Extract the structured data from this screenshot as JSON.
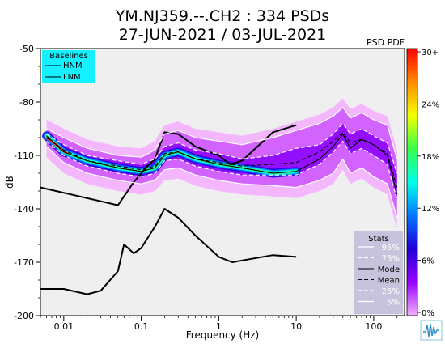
{
  "title_line1": "YM.NJ359.--.CH2 : 334 PSDs",
  "title_line2": "27-JUN-2021 / 03-JUL-2021",
  "corner_label": "PSD PDF",
  "colorbar": {
    "tick_labels": [
      "30+",
      "24%",
      "18%",
      "12%",
      "6%",
      "0%"
    ],
    "colors": [
      "#ff0000",
      "#ff8a00",
      "#f5ff00",
      "#38ff4a",
      "#00ffe8",
      "#0078ff",
      "#2000d8",
      "#9a00ff",
      "#f4b0ff"
    ]
  },
  "baselines_legend": {
    "title": "Baselines",
    "entries": [
      "HNM",
      "LNM"
    ],
    "background": "#14f0ff"
  },
  "stats_legend": {
    "title": "Stats",
    "entries": [
      "95%",
      "75%",
      "Mode",
      "Mean",
      "25%",
      "5%"
    ],
    "background": "#c8c3dc"
  },
  "chart_data": {
    "type": "line",
    "xlabel": "Frequency (Hz)",
    "ylabel": "dB",
    "x_scale": "log",
    "xlim": [
      0.005,
      250
    ],
    "ylim": [
      -200,
      -50
    ],
    "x_ticks": [
      0.01,
      0.1,
      1,
      10,
      100
    ],
    "x_tick_labels": [
      "0.01",
      "0.1",
      "1",
      "10",
      "100"
    ],
    "y_ticks": [
      -50,
      -80,
      -110,
      -140,
      -170,
      -200
    ],
    "y_tick_labels": [
      "-50",
      "-80",
      "-110",
      "-140",
      "-170",
      "-200"
    ],
    "series": [
      {
        "name": "HNM",
        "x": [
          0.005,
          0.05,
          0.08,
          0.12,
          0.15,
          0.2,
          0.3,
          0.5,
          1.0,
          1.4,
          2.0,
          5.0,
          10.0
        ],
        "y": [
          -128,
          -138,
          -125,
          -116,
          -112,
          -97,
          -98,
          -105,
          -110,
          -115,
          -113,
          -97,
          -93
        ]
      },
      {
        "name": "LNM",
        "x": [
          0.005,
          0.01,
          0.02,
          0.03,
          0.05,
          0.06,
          0.08,
          0.1,
          0.15,
          0.2,
          0.3,
          0.5,
          1.0,
          1.5,
          2.0,
          5.0,
          10.0
        ],
        "y": [
          -185,
          -185,
          -188,
          -186,
          -175,
          -160,
          -165,
          -162,
          -150,
          -140,
          -145,
          -155,
          -167,
          -170,
          -169,
          -166,
          -167
        ]
      },
      {
        "name": "95%",
        "x": [
          0.006,
          0.01,
          0.02,
          0.05,
          0.1,
          0.15,
          0.2,
          0.3,
          0.5,
          1,
          2,
          5,
          10,
          20,
          30,
          40,
          50,
          70,
          100,
          150,
          200
        ],
        "y": [
          -95,
          -100,
          -106,
          -110,
          -111,
          -107,
          -98,
          -96,
          -100,
          -102,
          -104,
          -100,
          -96,
          -92,
          -88,
          -83,
          -89,
          -86,
          -90,
          -93,
          -112
        ]
      },
      {
        "name": "75%",
        "x": [
          0.006,
          0.01,
          0.02,
          0.05,
          0.1,
          0.15,
          0.2,
          0.3,
          0.5,
          1,
          2,
          5,
          10,
          20,
          30,
          40,
          50,
          70,
          100,
          150,
          200
        ],
        "y": [
          -98,
          -104,
          -110,
          -113,
          -115,
          -112,
          -105,
          -103,
          -107,
          -109,
          -112,
          -110,
          -106,
          -104,
          -98,
          -92,
          -98,
          -95,
          -99,
          -103,
          -120
        ]
      },
      {
        "name": "Mode",
        "x": [
          0.006,
          0.01,
          0.02,
          0.05,
          0.1,
          0.15,
          0.2,
          0.3,
          0.5,
          1,
          2,
          5,
          10,
          20,
          30,
          40,
          50,
          70,
          100,
          150,
          200
        ],
        "y": [
          -99,
          -108,
          -113,
          -117,
          -119,
          -117,
          -110,
          -108,
          -112,
          -115,
          -117,
          -120,
          -119,
          -112,
          -105,
          -98,
          -106,
          -101,
          -104,
          -110,
          -132
        ]
      },
      {
        "name": "Mean",
        "x": [
          0.006,
          0.01,
          0.02,
          0.05,
          0.1,
          0.15,
          0.2,
          0.3,
          0.5,
          1,
          2,
          5,
          10,
          20,
          30,
          40,
          50,
          70,
          100,
          150,
          200
        ],
        "y": [
          -100,
          -107,
          -113,
          -116,
          -118,
          -116,
          -109,
          -108,
          -112,
          -114,
          -116,
          -115,
          -114,
          -108,
          -102,
          -97,
          -103,
          -101,
          -104,
          -109,
          -128
        ]
      },
      {
        "name": "25%",
        "x": [
          0.006,
          0.01,
          0.02,
          0.05,
          0.1,
          0.15,
          0.2,
          0.3,
          0.5,
          1,
          2,
          5,
          10,
          20,
          30,
          40,
          50,
          70,
          100,
          150,
          200
        ],
        "y": [
          -102,
          -110,
          -116,
          -120,
          -122,
          -120,
          -113,
          -112,
          -116,
          -119,
          -121,
          -121,
          -121,
          -115,
          -108,
          -102,
          -109,
          -106,
          -110,
          -115,
          -135
        ]
      },
      {
        "name": "5%",
        "x": [
          0.006,
          0.01,
          0.02,
          0.05,
          0.1,
          0.15,
          0.2,
          0.3,
          0.5,
          1,
          2,
          5,
          10,
          20,
          30,
          40,
          50,
          70,
          100,
          150,
          200
        ],
        "y": [
          -105,
          -114,
          -120,
          -124,
          -126,
          -124,
          -118,
          -117,
          -121,
          -124,
          -126,
          -127,
          -128,
          -124,
          -120,
          -112,
          -120,
          -117,
          -122,
          -126,
          -145
        ]
      }
    ]
  }
}
